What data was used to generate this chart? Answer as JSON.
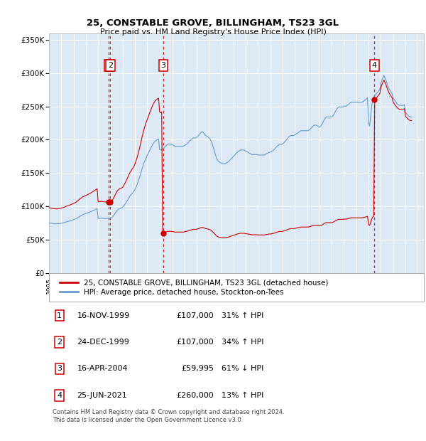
{
  "title": "25, CONSTABLE GROVE, BILLINGHAM, TS23 3GL",
  "subtitle": "Price paid vs. HM Land Registry's House Price Index (HPI)",
  "background_color": "#dce9f5",
  "plot_bg_color": "#dce9f5",
  "ylim": [
    0,
    360000
  ],
  "yticks": [
    0,
    50000,
    100000,
    150000,
    200000,
    250000,
    300000,
    350000
  ],
  "ytick_labels": [
    "£0",
    "£50K",
    "£100K",
    "£150K",
    "£200K",
    "£250K",
    "£300K",
    "£350K"
  ],
  "xlim_start": 1995.0,
  "xlim_end": 2025.5,
  "sale_dates": [
    1999.88,
    1999.98,
    2004.29,
    2021.48
  ],
  "sale_prices": [
    107000,
    107000,
    59995,
    260000
  ],
  "sale_labels": [
    "1",
    "2",
    "3",
    "4"
  ],
  "red_line_color": "#cc0000",
  "blue_line_color": "#6699cc",
  "grid_color": "#ffffff",
  "legend1": "25, CONSTABLE GROVE, BILLINGHAM, TS23 3GL (detached house)",
  "legend2": "HPI: Average price, detached house, Stockton-on-Tees",
  "table_rows": [
    {
      "num": "1",
      "date": "16-NOV-1999",
      "price": "£107,000",
      "hpi": "31% ↑ HPI"
    },
    {
      "num": "2",
      "date": "24-DEC-1999",
      "price": "£107,000",
      "hpi": "34% ↑ HPI"
    },
    {
      "num": "3",
      "date": "16-APR-2004",
      "price": "£59,995",
      "hpi": "61% ↓ HPI"
    },
    {
      "num": "4",
      "date": "25-JUN-2021",
      "price": "£260,000",
      "hpi": "13% ↑ HPI"
    }
  ],
  "footnote": "Contains HM Land Registry data © Crown copyright and database right 2024.\nThis data is licensed under the Open Government Licence v3.0.",
  "hpi_index": [
    100.0,
    99.8,
    99.5,
    99.2,
    98.9,
    98.6,
    98.5,
    98.3,
    98.3,
    98.5,
    98.8,
    99.1,
    99.5,
    99.9,
    100.4,
    101.0,
    101.6,
    102.3,
    103.0,
    103.4,
    104.0,
    104.6,
    105.2,
    105.8,
    106.8,
    107.5,
    108.2,
    109.3,
    110.5,
    111.9,
    113.3,
    114.4,
    115.5,
    116.8,
    117.5,
    118.2,
    118.9,
    119.6,
    120.4,
    121.2,
    122.0,
    122.9,
    123.8,
    124.8,
    125.8,
    126.9,
    128.0,
    129.1,
    109.0,
    109.3,
    109.6,
    109.8,
    109.6,
    109.3,
    109.1,
    108.9,
    109.1,
    109.3,
    109.4,
    109.3,
    109.3,
    110.3,
    112.0,
    114.8,
    117.7,
    120.8,
    124.0,
    126.5,
    127.9,
    129.1,
    129.8,
    130.4,
    131.4,
    134.2,
    137.1,
    140.2,
    143.4,
    146.8,
    150.3,
    153.8,
    156.3,
    158.9,
    161.3,
    163.7,
    167.3,
    172.1,
    177.1,
    182.7,
    188.7,
    195.3,
    202.2,
    209.4,
    215.6,
    221.6,
    226.5,
    231.3,
    235.8,
    240.1,
    244.3,
    248.3,
    252.3,
    256.3,
    259.7,
    262.3,
    264.5,
    265.8,
    267.1,
    267.9,
    246.9,
    245.6,
    246.6,
    247.7,
    249.4,
    251.6,
    254.0,
    256.3,
    257.7,
    258.1,
    258.1,
    258.1,
    257.2,
    256.1,
    254.8,
    253.5,
    253.5,
    253.5,
    253.5,
    253.5,
    253.5,
    253.5,
    253.5,
    253.5,
    254.7,
    255.9,
    257.2,
    258.8,
    260.9,
    263.2,
    265.4,
    267.7,
    269.0,
    270.3,
    270.3,
    270.3,
    271.6,
    272.9,
    275.3,
    277.6,
    280.0,
    282.5,
    282.5,
    280.0,
    277.5,
    275.0,
    273.8,
    272.5,
    271.3,
    268.8,
    265.0,
    260.0,
    254.0,
    247.0,
    240.0,
    233.5,
    228.0,
    224.5,
    222.3,
    221.3,
    220.0,
    218.8,
    218.8,
    218.8,
    218.8,
    219.9,
    221.0,
    222.3,
    224.4,
    226.5,
    228.6,
    230.8,
    233.0,
    235.2,
    237.5,
    239.8,
    242.2,
    243.4,
    244.8,
    246.1,
    246.1,
    246.1,
    246.1,
    245.2,
    244.1,
    242.9,
    241.7,
    240.5,
    239.4,
    238.2,
    237.0,
    237.0,
    237.0,
    237.0,
    237.0,
    237.0,
    236.0,
    236.0,
    236.0,
    236.0,
    236.0,
    236.0,
    236.0,
    237.1,
    238.2,
    239.3,
    240.4,
    241.5,
    241.5,
    242.7,
    243.9,
    245.2,
    247.4,
    249.7,
    252.0,
    254.4,
    255.8,
    257.2,
    257.2,
    257.2,
    258.4,
    259.7,
    262.1,
    264.5,
    267.0,
    269.6,
    272.2,
    273.6,
    274.9,
    274.9,
    274.9,
    274.9,
    276.3,
    277.6,
    279.0,
    280.4,
    281.8,
    283.2,
    284.7,
    284.7,
    284.7,
    284.7,
    284.7,
    284.7,
    284.7,
    284.7,
    286.2,
    287.7,
    289.9,
    292.0,
    294.3,
    295.8,
    295.8,
    295.8,
    294.3,
    292.9,
    291.5,
    292.9,
    295.8,
    299.3,
    303.5,
    307.7,
    310.7,
    312.2,
    312.2,
    312.2,
    312.2,
    312.2,
    312.2,
    313.8,
    316.9,
    320.7,
    324.5,
    328.3,
    330.7,
    332.2,
    332.2,
    332.2,
    332.2,
    332.2,
    333.8,
    333.8,
    333.8,
    335.4,
    337.0,
    338.6,
    340.2,
    341.8,
    341.8,
    341.8,
    341.8,
    341.8,
    341.8,
    341.8,
    341.8,
    341.8,
    341.8,
    341.8,
    341.8,
    343.5,
    345.2,
    346.9,
    348.7,
    350.4,
    300.4,
    294.0,
    313.2,
    332.4,
    346.9,
    351.7,
    354.9,
    357.2,
    359.7,
    362.2,
    364.8,
    367.4,
    379.6,
    385.8,
    390.5,
    395.3,
    390.5,
    385.8,
    379.6,
    373.4,
    368.8,
    365.3,
    362.0,
    358.8,
    350.4,
    346.9,
    344.0,
    341.2,
    338.6,
    336.8,
    335.4,
    335.4,
    335.4,
    335.4,
    335.4,
    336.8,
    321.2,
    318.7,
    316.2,
    314.5,
    313.0,
    312.2,
    312.2
  ]
}
